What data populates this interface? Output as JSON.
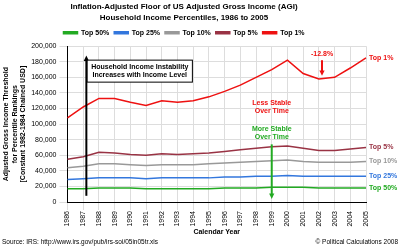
{
  "chart_data": {
    "type": "line",
    "title": "Inflation-Adjusted Floor of US Adjusted Gross Income (AGI)",
    "subtitle": "Household Income Percentiles, 1986 to 2005",
    "x_label": "Calendar Year",
    "y_label": [
      "Adjusted Gross Income Threshold",
      "for Percentile Rankings",
      "[Constant 1982-1984 Chained USD]"
    ],
    "categories": [
      "1986",
      "1987",
      "1988",
      "1989",
      "1990",
      "1991",
      "1992",
      "1993",
      "1994",
      "1995",
      "1996",
      "1997",
      "1998",
      "1999",
      "2000",
      "2001",
      "2002",
      "2003",
      "2004",
      "2005"
    ],
    "series": [
      {
        "name": "Top 50%",
        "color": "#22aa22",
        "values": [
          17000,
          17000,
          18000,
          18000,
          18000,
          17000,
          17000,
          17000,
          17000,
          17000,
          18000,
          18000,
          18000,
          19000,
          19000,
          19000,
          18000,
          18000,
          18000,
          18000
        ]
      },
      {
        "name": "Top 25%",
        "color": "#3377dd",
        "values": [
          29000,
          30000,
          31000,
          31000,
          31000,
          30000,
          31000,
          31000,
          31000,
          31000,
          32000,
          32000,
          33000,
          33000,
          34000,
          33000,
          33000,
          33000,
          33000,
          33000
        ]
      },
      {
        "name": "Top 10%",
        "color": "#999999",
        "values": [
          44000,
          46000,
          49000,
          49000,
          48000,
          47000,
          48000,
          48000,
          48000,
          49000,
          50000,
          51000,
          52000,
          53000,
          54000,
          52000,
          51000,
          51000,
          51000,
          52000
        ]
      },
      {
        "name": "Top 5%",
        "color": "#993344",
        "values": [
          55000,
          58000,
          64000,
          63000,
          61000,
          60000,
          62000,
          61000,
          62000,
          63000,
          65000,
          67000,
          69000,
          71000,
          72000,
          69000,
          66000,
          66000,
          68000,
          70000
        ]
      },
      {
        "name": "Top 1%",
        "color": "#ee1111",
        "values": [
          108000,
          122000,
          133000,
          133000,
          128000,
          124000,
          130000,
          128000,
          130000,
          135000,
          142000,
          150000,
          160000,
          170000,
          182000,
          165000,
          158000,
          160000,
          172000,
          185000
        ]
      }
    ],
    "ylim": [
      0,
      200000
    ],
    "yticks": [
      0,
      {
        "value": 20000,
        "label": "20,000"
      },
      {
        "value": 40000,
        "label": "40,000"
      },
      {
        "value": 60000,
        "label": "60,000"
      },
      {
        "value": 80000,
        "label": "80,000"
      },
      {
        "value": 100000,
        "label": "100,000"
      },
      {
        "value": 120000,
        "label": "120,000"
      },
      {
        "value": 140000,
        "label": "140,000"
      },
      {
        "value": 160000,
        "label": "160,000"
      },
      {
        "value": 180000,
        "label": "180,000"
      },
      {
        "value": 200000,
        "label": "200,000"
      }
    ],
    "grid": true,
    "legend": "top",
    "annotations": [
      {
        "text": [
          "Household Income Instability",
          "Increases with Income Level"
        ],
        "color": "#000000"
      },
      {
        "text": [
          "Less Stable",
          "Over Time"
        ],
        "color": "#ee1111"
      },
      {
        "text": [
          "More Stable",
          "Over Time"
        ],
        "color": "#22aa22"
      },
      {
        "text": [
          "-12.8%"
        ],
        "color": "#ee1111"
      },
      {
        "text": [
          "Source: IRS: http://www.irs.gov/pub/irs-soi/05in05tr.xls"
        ],
        "color": "#000000"
      },
      {
        "text": [
          "© Political Calculations 2008"
        ],
        "color": "#000000"
      }
    ]
  }
}
